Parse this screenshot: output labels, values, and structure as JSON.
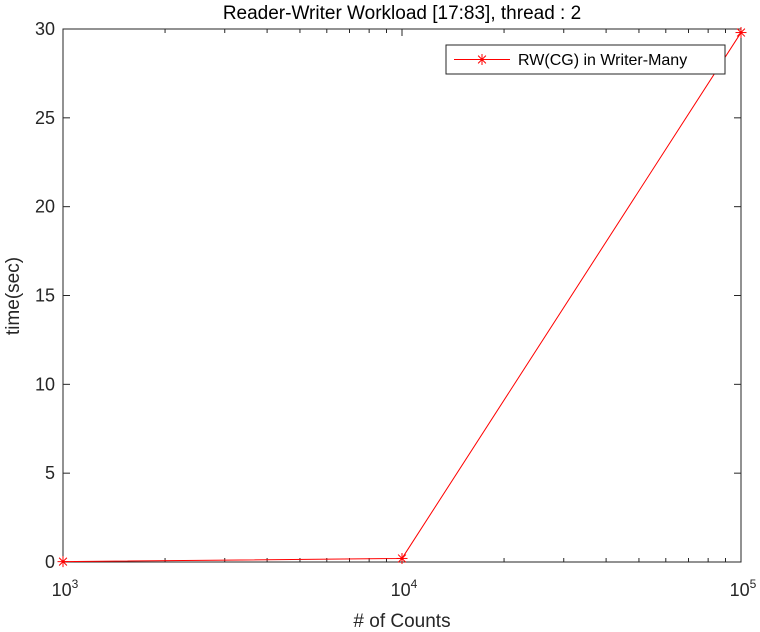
{
  "chart_data": {
    "type": "line",
    "title": "Reader-Writer Workload [17:83], thread : 2",
    "xlabel": "# of Counts",
    "ylabel": "time(sec)",
    "xscale": "log",
    "xlim": [
      1000,
      100000
    ],
    "ylim": [
      0,
      30
    ],
    "grid": false,
    "legend_position": "top-right",
    "x_ticks": [
      {
        "base": "10",
        "exp": "3",
        "value": 1000
      },
      {
        "base": "10",
        "exp": "4",
        "value": 10000
      },
      {
        "base": "10",
        "exp": "5",
        "value": 100000
      }
    ],
    "y_ticks": [
      {
        "label": "0",
        "value": 0
      },
      {
        "label": "5",
        "value": 5
      },
      {
        "label": "10",
        "value": 10
      },
      {
        "label": "15",
        "value": 15
      },
      {
        "label": "20",
        "value": 20
      },
      {
        "label": "25",
        "value": 25
      },
      {
        "label": "30",
        "value": 30
      }
    ],
    "series": [
      {
        "name": "RW(CG) in Writer-Many",
        "color": "#ff0000",
        "marker": "asterisk",
        "x": [
          1000,
          10000,
          100000
        ],
        "y": [
          0.02,
          0.2,
          29.8
        ]
      }
    ]
  }
}
